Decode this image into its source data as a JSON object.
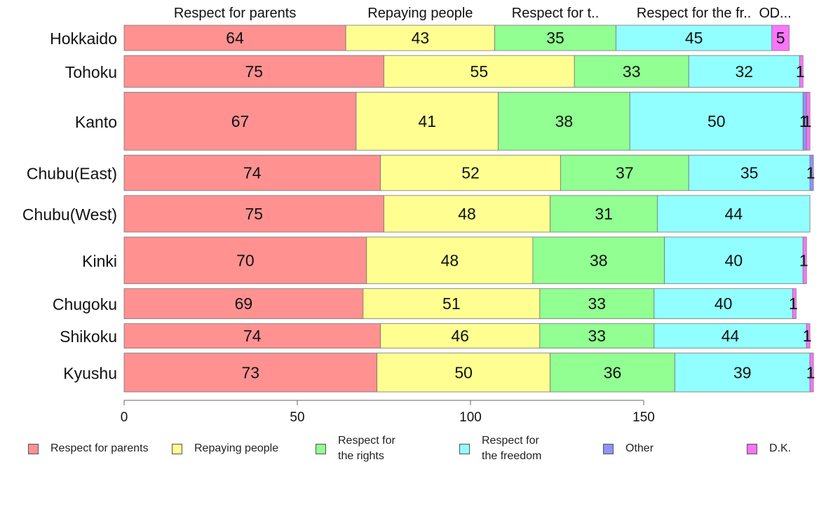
{
  "chart_data": {
    "type": "bar",
    "orientation": "horizontal",
    "stacked": true,
    "categories": [
      "Hokkaido",
      "Tohoku",
      "Kanto",
      "Chubu(East)",
      "Chubu(West)",
      "Kinki",
      "Chugoku",
      "Shikoku",
      "Kyushu"
    ],
    "series": [
      {
        "name": "Respect for parents",
        "legend_label": "Respect for parents",
        "color": "#ff9191",
        "values": [
          64,
          75,
          67,
          74,
          75,
          70,
          69,
          74,
          73
        ]
      },
      {
        "name": "Repaying people",
        "legend_label": "Repaying people",
        "color": "#ffff91",
        "values": [
          43,
          55,
          41,
          52,
          48,
          48,
          51,
          46,
          50
        ]
      },
      {
        "name": "Respect for the rights",
        "legend_label": "Respect for\nthe rights",
        "color": "#91ff91",
        "values": [
          35,
          33,
          38,
          37,
          31,
          38,
          33,
          33,
          36
        ]
      },
      {
        "name": "Respect for the freedom",
        "legend_label": "Respect for\nthe freedom",
        "color": "#91ffff",
        "values": [
          45,
          32,
          50,
          35,
          44,
          40,
          40,
          44,
          39
        ]
      },
      {
        "name": "Other",
        "legend_label": "Other",
        "color": "#9191ff",
        "values": [
          0,
          0,
          1,
          1,
          0,
          0,
          0,
          0,
          0
        ]
      },
      {
        "name": "D.K.",
        "legend_label": "D.K.",
        "color": "#ff73ff",
        "values": [
          5,
          1,
          1,
          0,
          0,
          1,
          1,
          1,
          1
        ]
      }
    ],
    "top_labels": [
      "Respect for parents",
      "Repaying people",
      "Respect for t..",
      "Respect for the fr..",
      "O..",
      "D..."
    ],
    "bar_weights": [
      0.9,
      1.13,
      2.06,
      1.26,
      1.3,
      1.66,
      1.07,
      0.87,
      1.38
    ],
    "xticks": [
      0,
      50,
      100,
      150
    ],
    "xlim": [
      0,
      200
    ],
    "xlabel": "",
    "ylabel": "",
    "grid": false,
    "legend_position": "bottom"
  }
}
